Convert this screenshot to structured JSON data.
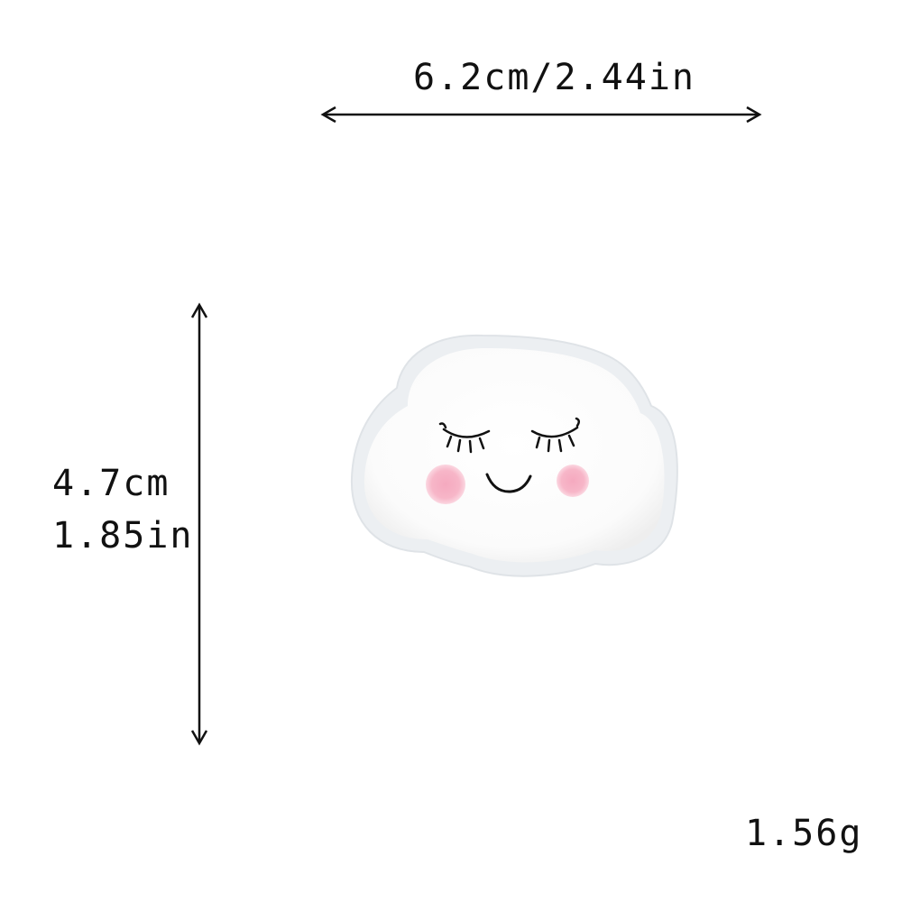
{
  "dimensions": {
    "width_text": "6.2cm/2.44in",
    "height_cm_text": "4.7cm",
    "height_in_text": "1.85in"
  },
  "weight_text": "1.56g",
  "product": {
    "icon": "smiling-cloud-patch",
    "colors": {
      "fleece": "#ffffff",
      "backing": "#e9ecef",
      "stitch": "#111111",
      "cheek": "#f4a7bd"
    }
  }
}
